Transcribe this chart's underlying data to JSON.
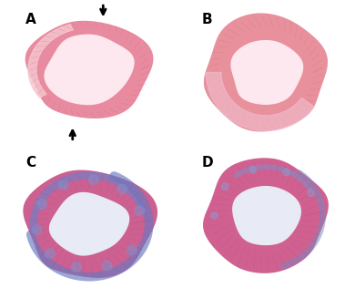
{
  "panel_labels": [
    "A",
    "B",
    "C",
    "D"
  ],
  "label_fontsize": 11,
  "label_color": "black",
  "label_fontweight": "bold",
  "bg_color_top": "#fce8e8",
  "bg_color_bot": "#eeeef5",
  "tissue_HE": "#e88aa0",
  "lumen_HE": "#fce8ee",
  "tissue_MT_pink": "#cc6090",
  "tissue_MT_blue": "#7080c0",
  "lumen_MT": "#e8eaf5",
  "figsize": [
    3.9,
    3.16
  ],
  "dpi": 100
}
